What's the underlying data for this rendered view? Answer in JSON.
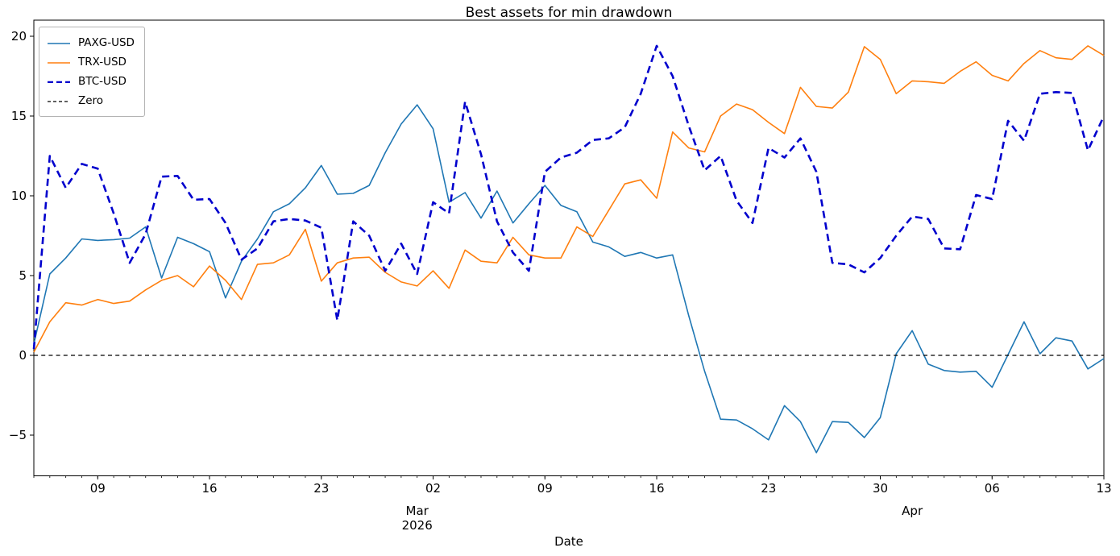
{
  "chart_data": {
    "type": "line",
    "title": "Best assets for min drawdown",
    "xlabel": "Date",
    "ylabel": "",
    "x_start_date": "2026-02-05",
    "x_frequency": "daily",
    "n_points": 68,
    "ylim": [
      -7.5,
      21.0
    ],
    "yticks": [
      20,
      15,
      10,
      5,
      0,
      -5
    ],
    "xticks": {
      "indices": [
        4,
        11,
        18,
        25,
        32,
        39,
        46,
        53,
        60,
        67
      ],
      "labels": [
        "09",
        "16",
        "23",
        "02",
        "09",
        "16",
        "23",
        "30",
        "06",
        "13"
      ]
    },
    "month_labels": [
      {
        "index": 24,
        "lines": [
          "Mar",
          "2026"
        ]
      },
      {
        "index": 55,
        "lines": [
          "Apr"
        ]
      }
    ],
    "grid": false,
    "legend_position": "upper-left",
    "series": [
      {
        "name": "PAXG-USD",
        "color": "#1f77b4",
        "style": "solid",
        "width": 1.6,
        "values": [
          0.7,
          5.1,
          6.1,
          7.3,
          7.2,
          7.25,
          7.35,
          8.05,
          4.85,
          7.4,
          7.0,
          6.5,
          3.6,
          5.9,
          7.3,
          9.0,
          9.5,
          10.5,
          11.9,
          10.1,
          10.15,
          10.65,
          12.7,
          14.5,
          15.7,
          14.2,
          9.6,
          10.2,
          8.6,
          10.3,
          8.3,
          9.5,
          10.65,
          9.4,
          9.0,
          7.1,
          6.8,
          6.2,
          6.45,
          6.1,
          6.3,
          2.5,
          -1.0,
          -4.0,
          -4.05,
          -4.6,
          -5.3,
          -3.15,
          -4.15,
          -6.1,
          -4.15,
          -4.2,
          -5.15,
          -3.9,
          0.1,
          1.55,
          -0.55,
          -0.95,
          -1.05,
          -1.0,
          -2.0,
          0.05,
          2.1,
          0.1,
          1.1,
          0.9,
          -0.85,
          -0.2
        ]
      },
      {
        "name": "TRX-USD",
        "color": "#ff7f0e",
        "style": "solid",
        "width": 1.6,
        "values": [
          0.2,
          2.1,
          3.3,
          3.15,
          3.5,
          3.25,
          3.4,
          4.1,
          4.7,
          5.0,
          4.3,
          5.6,
          4.7,
          3.5,
          5.7,
          5.8,
          6.3,
          7.9,
          4.65,
          5.8,
          6.1,
          6.15,
          5.2,
          4.6,
          4.35,
          5.3,
          4.2,
          6.6,
          5.9,
          5.8,
          7.4,
          6.3,
          6.1,
          6.1,
          8.05,
          7.45,
          9.1,
          10.75,
          11.0,
          9.85,
          14.0,
          13.0,
          12.75,
          15.0,
          15.75,
          15.4,
          14.6,
          13.9,
          16.8,
          15.6,
          15.5,
          16.5,
          19.35,
          18.55,
          16.4,
          17.2,
          17.15,
          17.05,
          17.8,
          18.4,
          17.55,
          17.2,
          18.3,
          19.1,
          18.65,
          18.55,
          19.4,
          18.8
        ]
      },
      {
        "name": "BTC-USD",
        "color": "#0000cd",
        "style": "dashed",
        "width": 2.6,
        "values": [
          0.4,
          12.5,
          10.5,
          12.0,
          11.7,
          8.9,
          5.8,
          7.6,
          11.2,
          11.25,
          9.75,
          9.8,
          8.3,
          6.0,
          6.7,
          8.4,
          8.55,
          8.45,
          8.0,
          2.2,
          8.4,
          7.5,
          5.3,
          7.0,
          5.1,
          9.6,
          8.9,
          15.9,
          12.6,
          8.4,
          6.45,
          5.3,
          11.5,
          12.4,
          12.7,
          13.5,
          13.6,
          14.3,
          16.4,
          19.4,
          17.5,
          14.4,
          11.6,
          12.5,
          9.7,
          8.3,
          13.0,
          12.4,
          13.6,
          11.5,
          5.8,
          5.7,
          5.2,
          6.1,
          7.5,
          8.7,
          8.55,
          6.7,
          6.65,
          10.05,
          9.8,
          14.7,
          13.45,
          16.4,
          16.5,
          16.45,
          12.85,
          15.0
        ]
      },
      {
        "name": "Zero",
        "color": "#000000",
        "style": "dashed",
        "width": 1.3,
        "constant": 0
      }
    ]
  }
}
